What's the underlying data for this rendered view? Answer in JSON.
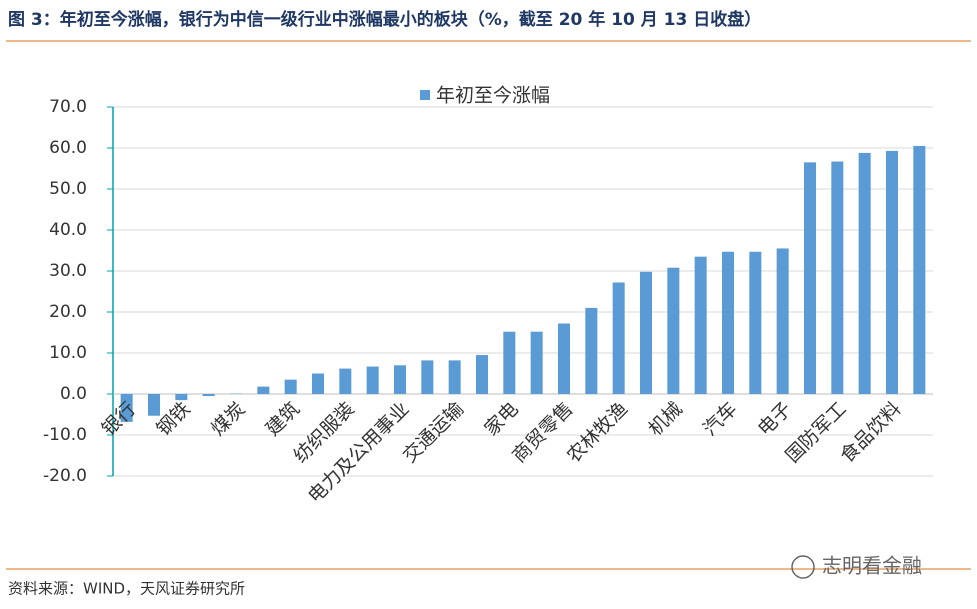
{
  "header": {
    "title": "图 3：年初至今涨幅，银行为中信一级行业中涨幅最小的板块（%，截至 20 年 10 月 13 日收盘）"
  },
  "chart_data": {
    "type": "bar",
    "categories": [
      "银行",
      null,
      "钢铁",
      null,
      "煤炭",
      null,
      "建筑",
      null,
      "纺织服装",
      null,
      "电力及公用事业",
      null,
      "交通运输",
      null,
      "家电",
      null,
      "商贸零售",
      null,
      "农林牧渔",
      null,
      "机械",
      null,
      "汽车",
      null,
      "电子",
      null,
      "国防军工",
      null,
      "食品饮料",
      null
    ],
    "series": [
      {
        "name": "年初至今涨幅",
        "color": "#5b9bd5",
        "values": [
          -6.8,
          -5.3,
          -1.5,
          -0.5,
          0.1,
          1.8,
          3.5,
          5.0,
          6.2,
          6.7,
          7.0,
          8.2,
          8.2,
          9.5,
          15.2,
          15.2,
          17.2,
          21.0,
          27.2,
          29.8,
          30.8,
          33.5,
          34.7,
          34.7,
          35.5,
          56.5,
          56.7,
          58.8,
          59.3,
          60.5
        ]
      }
    ],
    "ylim": [
      -20,
      70
    ],
    "yticks": [
      {
        "value": -20,
        "label": "-20.0"
      },
      {
        "value": -10,
        "label": "-10.0"
      },
      {
        "value": 0,
        "label": "0.0"
      },
      {
        "value": 10,
        "label": "10.0"
      },
      {
        "value": 20,
        "label": "20.0"
      },
      {
        "value": 30,
        "label": "30.0"
      },
      {
        "value": 40,
        "label": "40.0"
      },
      {
        "value": 50,
        "label": "50.0"
      },
      {
        "value": 60,
        "label": "60.0"
      },
      {
        "value": 70,
        "label": "70.0"
      }
    ],
    "grid": true,
    "legend": "top"
  },
  "footer": {
    "source": "资料来源：WIND，天风证券研究所",
    "watermark": "志明看金融"
  }
}
